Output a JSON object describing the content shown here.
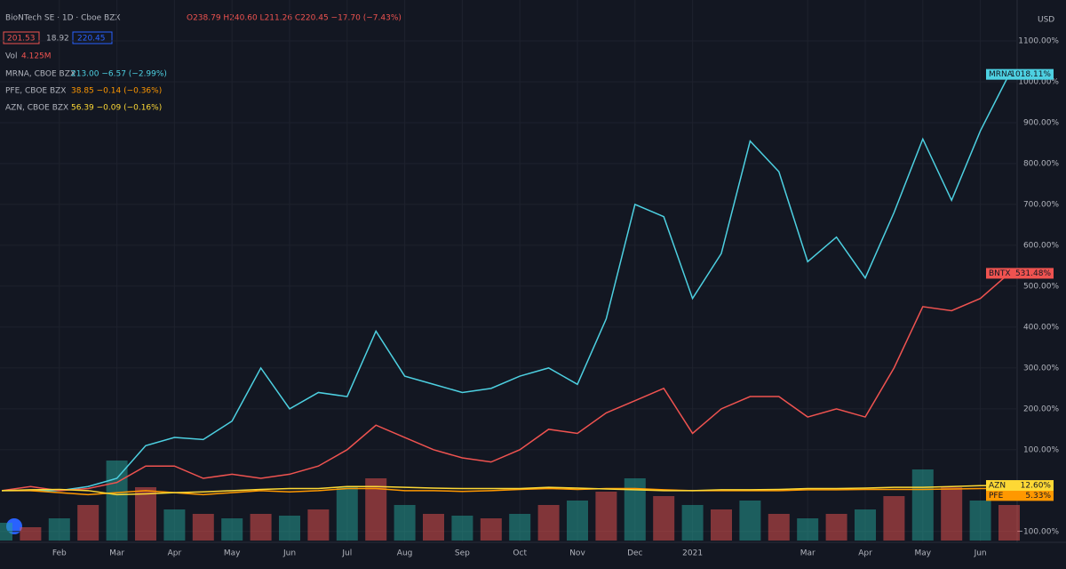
{
  "header": {
    "symbol": "BioNTech SE · 1D · Cboe BZX",
    "ohlc": "O238.79 H240.60 L211.26 C220.45 −17.70 (−7.43%)",
    "bid": "201.53",
    "spread": "18.92",
    "ask": "220.45",
    "vol_label": "Vol",
    "vol_value": "4.125M",
    "currency": "USD"
  },
  "chart_data": {
    "type": "line",
    "categories": [
      null,
      null,
      "Feb",
      null,
      "Mar",
      null,
      "Apr",
      null,
      "May",
      null,
      "Jun",
      null,
      "Jul",
      null,
      "Aug",
      null,
      "Sep",
      null,
      "Oct",
      null,
      "Nov",
      null,
      "Dec",
      null,
      "2021",
      null,
      null,
      null,
      "Mar",
      null,
      "Apr",
      null,
      "May",
      null,
      "Jun",
      null
    ],
    "ylim": [
      -120,
      1150
    ],
    "yticks": [
      {
        "value": -100,
        "label": "−100.00%"
      },
      {
        "value": 100,
        "label": "100.00%"
      },
      {
        "value": 200,
        "label": "200.00%"
      },
      {
        "value": 300,
        "label": "300.00%"
      },
      {
        "value": 400,
        "label": "400.00%"
      },
      {
        "value": 500,
        "label": "500.00%"
      },
      {
        "value": 600,
        "label": "600.00%"
      },
      {
        "value": 700,
        "label": "700.00%"
      },
      {
        "value": 800,
        "label": "800.00%"
      },
      {
        "value": 900,
        "label": "900.00%"
      },
      {
        "value": 1000,
        "label": "1000.00%"
      },
      {
        "value": 1100,
        "label": "1100.00%"
      }
    ],
    "grid": true,
    "series": [
      {
        "name": "MRNA",
        "legend": "MRNA, CBOE BZX",
        "quote": "213.00 −6.57 (−2.99%)",
        "color": "#4dd0e1",
        "last_label": "1018.11%",
        "values": [
          0,
          0,
          0,
          10,
          30,
          110,
          130,
          125,
          170,
          300,
          200,
          240,
          230,
          390,
          280,
          260,
          240,
          250,
          280,
          300,
          260,
          420,
          700,
          670,
          470,
          580,
          855,
          780,
          560,
          620,
          520,
          680,
          860,
          710,
          880,
          1018.11
        ]
      },
      {
        "name": "BNTX",
        "color": "#ef5350",
        "last_label": "531.48%",
        "values": [
          0,
          10,
          0,
          5,
          20,
          60,
          60,
          30,
          40,
          30,
          40,
          60,
          100,
          160,
          130,
          100,
          80,
          70,
          100,
          150,
          140,
          190,
          220,
          250,
          140,
          200,
          230,
          230,
          180,
          200,
          180,
          300,
          450,
          440,
          470,
          531.48
        ]
      },
      {
        "name": "PFE",
        "legend": "PFE, CBOE BZX",
        "quote": "38.85 −0.14 (−0.36%)",
        "color": "#ff9800",
        "last_label": "5.33%",
        "values": [
          0,
          0,
          -5,
          -10,
          -5,
          0,
          -5,
          -10,
          -5,
          0,
          -3,
          0,
          5,
          5,
          0,
          0,
          -2,
          0,
          3,
          5,
          3,
          5,
          5,
          2,
          0,
          0,
          0,
          0,
          2,
          2,
          3,
          3,
          3,
          4,
          5,
          5.33
        ]
      },
      {
        "name": "AZN",
        "legend": "AZN, CBOE BZX",
        "quote": "56.39 −0.09 (−0.16%)",
        "color": "#fdd835",
        "last_label": "12.60%",
        "values": [
          0,
          2,
          3,
          0,
          -10,
          -8,
          -5,
          -3,
          0,
          3,
          5,
          5,
          10,
          10,
          8,
          6,
          5,
          5,
          5,
          8,
          6,
          4,
          2,
          0,
          0,
          2,
          2,
          3,
          5,
          5,
          6,
          8,
          8,
          10,
          12,
          12.6
        ]
      }
    ],
    "volume": {
      "colors": [
        "#26a69a",
        "#ef5350"
      ],
      "values": [
        20,
        15,
        25,
        40,
        90,
        60,
        35,
        30,
        25,
        30,
        28,
        35,
        60,
        70,
        40,
        30,
        28,
        25,
        30,
        40,
        45,
        55,
        70,
        50,
        40,
        35,
        45,
        30,
        25,
        30,
        35,
        50,
        80,
        60,
        45,
        40
      ]
    }
  }
}
